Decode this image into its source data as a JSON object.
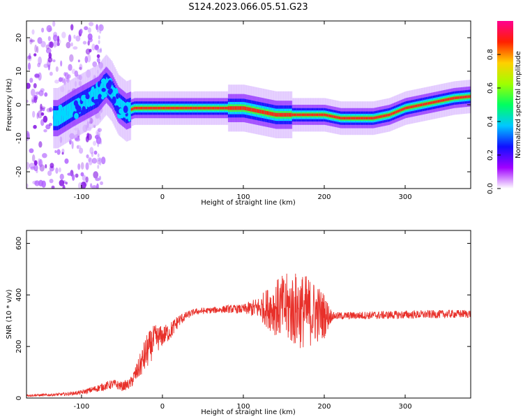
{
  "title": "S124.2023.066.05.51.G23",
  "chart_data": [
    {
      "type": "heatmap",
      "xlabel": "Height of straight line (km)",
      "ylabel": "Frequency (Hz)",
      "xlim": [
        -168,
        381
      ],
      "ylim": [
        -25,
        25
      ],
      "xticks": [
        -100,
        0,
        100,
        200,
        300
      ],
      "yticks": [
        -20,
        -10,
        0,
        10,
        20
      ],
      "colorbar": {
        "label": "Normalized spectral amplitude",
        "range": [
          0,
          1
        ],
        "ticks": [
          0.0,
          0.2,
          0.4,
          0.6,
          0.8
        ],
        "colormap": [
          "#ffffff",
          "#a000ff",
          "#1010ff",
          "#00c8ff",
          "#00ff60",
          "#a0ff00",
          "#ffd000",
          "#ff2000",
          "#ff0090"
        ]
      },
      "ridge": {
        "x": [
          -130,
          -110,
          -95,
          -80,
          -70,
          -63,
          -55,
          -45,
          -35,
          -20,
          0,
          20,
          40,
          60,
          80,
          100,
          120,
          140,
          160,
          180,
          200,
          220,
          240,
          260,
          280,
          300,
          320,
          340,
          360,
          381
        ],
        "y": [
          -4,
          -1,
          1,
          3,
          6,
          4,
          0,
          -2,
          -1,
          -1,
          -1,
          -1,
          -1,
          -1,
          -1,
          -1,
          -2,
          -3,
          -3,
          -3,
          -3,
          -4,
          -4,
          -4,
          -3,
          -1,
          0,
          1,
          2,
          2.5
        ]
      }
    },
    {
      "type": "line",
      "xlabel": "Height of straight line (km)",
      "ylabel": "SNR (10 * v/v)",
      "xlim": [
        -168,
        381
      ],
      "ylim": [
        0,
        650
      ],
      "xticks": [
        -100,
        0,
        100,
        200,
        300
      ],
      "yticks": [
        0,
        200,
        400,
        600
      ],
      "series": [
        {
          "color": "#e8302a",
          "x": [
            -168,
            -140,
            -120,
            -100,
            -80,
            -60,
            -50,
            -40,
            -30,
            -20,
            -10,
            0,
            10,
            20,
            30,
            40,
            60,
            80,
            100,
            120,
            130,
            140,
            150,
            160,
            170,
            180,
            190,
            200,
            210,
            240,
            280,
            320,
            360,
            381
          ],
          "y": [
            10,
            12,
            15,
            22,
            38,
            55,
            45,
            55,
            110,
            175,
            225,
            240,
            260,
            300,
            320,
            335,
            340,
            345,
            345,
            350,
            350,
            350,
            350,
            345,
            340,
            335,
            330,
            320,
            318,
            320,
            322,
            324,
            326,
            327
          ],
          "noise": [
            4,
            5,
            6,
            8,
            14,
            18,
            18,
            20,
            40,
            70,
            60,
            40,
            35,
            25,
            15,
            12,
            12,
            15,
            18,
            45,
            80,
            110,
            130,
            145,
            150,
            140,
            120,
            90,
            15,
            15,
            16,
            16,
            16,
            16
          ]
        }
      ]
    }
  ]
}
